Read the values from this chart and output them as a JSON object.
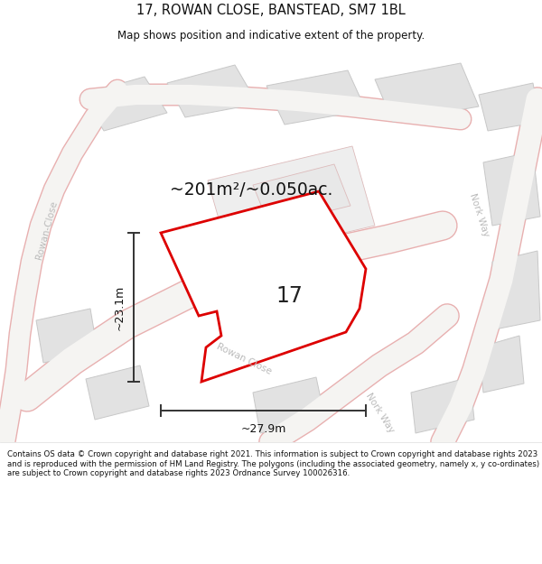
{
  "title": "17, ROWAN CLOSE, BANSTEAD, SM7 1BL",
  "subtitle": "Map shows position and indicative extent of the property.",
  "area_text": "~201m²/~0.050ac.",
  "width_label": "~27.9m",
  "height_label": "~23.1m",
  "property_number": "17",
  "footer": "Contains OS data © Crown copyright and database right 2021. This information is subject to Crown copyright and database rights 2023 and is reproduced with the permission of HM Land Registry. The polygons (including the associated geometry, namely x, y co-ordinates) are subject to Crown copyright and database rights 2023 Ordnance Survey 100026316.",
  "map_bg": "#f5f4f2",
  "building_fill": "#e4e4e4",
  "building_stroke": "#cccccc",
  "property_stroke": "#dd0000",
  "property_fill": "#ffffff",
  "road_pink": "#e8b0b0",
  "road_white": "#f5f4f2",
  "street_label_color": "#bbbbbb",
  "title_color": "#111111",
  "footer_color": "#111111",
  "dim_color": "#333333"
}
